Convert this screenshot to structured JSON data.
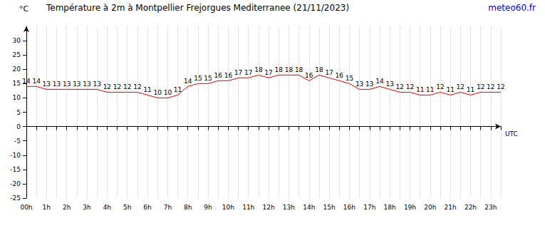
{
  "chart_data": {
    "type": "line",
    "title": "Température à 2m à Montpellier Frejorgues Mediterranee (21/11/2023)",
    "source": "meteo60.fr",
    "x_label": "UTC",
    "y_label": "°C",
    "categories": [
      "00h",
      null,
      "1h",
      null,
      "2h",
      null,
      "3h",
      null,
      "4h",
      null,
      "5h",
      null,
      "6h",
      null,
      "7h",
      null,
      "8h",
      null,
      "9h",
      null,
      "10h",
      null,
      "11h",
      null,
      "12h",
      null,
      "13h",
      null,
      "14h",
      null,
      "15h",
      null,
      "16h",
      null,
      "17h",
      null,
      "18h",
      null,
      "19h",
      null,
      "20h",
      null,
      "21h",
      null,
      "22h",
      null,
      "23h",
      null
    ],
    "values": [
      14,
      14,
      13,
      13,
      13,
      13,
      13,
      13,
      12,
      12,
      12,
      12,
      11,
      10,
      10,
      11,
      14,
      15,
      15,
      16,
      16,
      17,
      17,
      18,
      17,
      18,
      18,
      18,
      16,
      18,
      17,
      16,
      15,
      13,
      13,
      14,
      13,
      12,
      12,
      11,
      11,
      12,
      11,
      12,
      11,
      12,
      12,
      12
    ],
    "color": "#e00000",
    "ylim": [
      -25,
      35
    ],
    "yticks": [
      -25,
      -20,
      -15,
      -10,
      -5,
      0,
      5,
      10,
      15,
      20,
      25,
      30
    ],
    "grid": true,
    "data_labels": true
  }
}
